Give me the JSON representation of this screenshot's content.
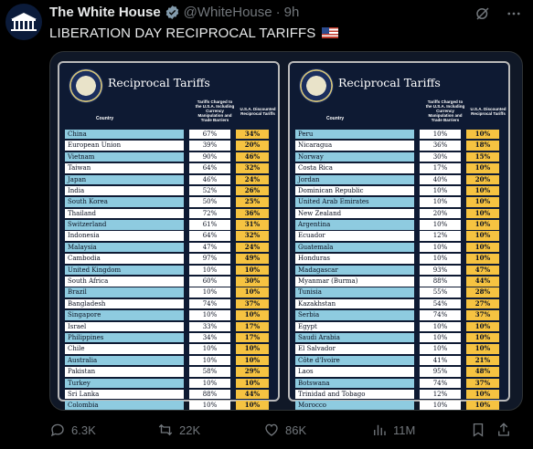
{
  "header": {
    "name": "The White House",
    "handle": "@WhiteHouse",
    "dot": "·",
    "time": "9h"
  },
  "tweet": {
    "text": "LIBERATION DAY RECIPROCAL TARIFFS"
  },
  "image": {
    "panels": [
      {
        "title": "Reciprocal Tariffs",
        "col_country": "Country",
        "col_charged": "Tariffs Charged to the U.S.A. Including Currency Manipulation and Trade Barriers",
        "col_discounted": "U.S.A. Discounted Reciprocal Tariffs",
        "rows": [
          {
            "country": "China",
            "charged": "67%",
            "discounted": "34%"
          },
          {
            "country": "European Union",
            "charged": "39%",
            "discounted": "20%"
          },
          {
            "country": "Vietnam",
            "charged": "90%",
            "discounted": "46%"
          },
          {
            "country": "Taiwan",
            "charged": "64%",
            "discounted": "32%"
          },
          {
            "country": "Japan",
            "charged": "46%",
            "discounted": "24%"
          },
          {
            "country": "India",
            "charged": "52%",
            "discounted": "26%"
          },
          {
            "country": "South Korea",
            "charged": "50%",
            "discounted": "25%"
          },
          {
            "country": "Thailand",
            "charged": "72%",
            "discounted": "36%"
          },
          {
            "country": "Switzerland",
            "charged": "61%",
            "discounted": "31%"
          },
          {
            "country": "Indonesia",
            "charged": "64%",
            "discounted": "32%"
          },
          {
            "country": "Malaysia",
            "charged": "47%",
            "discounted": "24%"
          },
          {
            "country": "Cambodia",
            "charged": "97%",
            "discounted": "49%"
          },
          {
            "country": "United Kingdom",
            "charged": "10%",
            "discounted": "10%"
          },
          {
            "country": "South Africa",
            "charged": "60%",
            "discounted": "30%"
          },
          {
            "country": "Brazil",
            "charged": "10%",
            "discounted": "10%"
          },
          {
            "country": "Bangladesh",
            "charged": "74%",
            "discounted": "37%"
          },
          {
            "country": "Singapore",
            "charged": "10%",
            "discounted": "10%"
          },
          {
            "country": "Israel",
            "charged": "33%",
            "discounted": "17%"
          },
          {
            "country": "Philippines",
            "charged": "34%",
            "discounted": "17%"
          },
          {
            "country": "Chile",
            "charged": "10%",
            "discounted": "10%"
          },
          {
            "country": "Australia",
            "charged": "10%",
            "discounted": "10%"
          },
          {
            "country": "Pakistan",
            "charged": "58%",
            "discounted": "29%"
          },
          {
            "country": "Turkey",
            "charged": "10%",
            "discounted": "10%"
          },
          {
            "country": "Sri Lanka",
            "charged": "88%",
            "discounted": "44%"
          },
          {
            "country": "Colombia",
            "charged": "10%",
            "discounted": "10%"
          }
        ]
      },
      {
        "title": "Reciprocal Tariffs",
        "col_country": "Country",
        "col_charged": "Tariffs Charged to the U.S.A. Including Currency Manipulation and Trade Barriers",
        "col_discounted": "U.S.A. Discounted Reciprocal Tariffs",
        "rows": [
          {
            "country": "Peru",
            "charged": "10%",
            "discounted": "10%"
          },
          {
            "country": "Nicaragua",
            "charged": "36%",
            "discounted": "18%"
          },
          {
            "country": "Norway",
            "charged": "30%",
            "discounted": "15%"
          },
          {
            "country": "Costa Rica",
            "charged": "17%",
            "discounted": "10%"
          },
          {
            "country": "Jordan",
            "charged": "40%",
            "discounted": "20%"
          },
          {
            "country": "Dominican Republic",
            "charged": "10%",
            "discounted": "10%"
          },
          {
            "country": "United Arab Emirates",
            "charged": "10%",
            "discounted": "10%"
          },
          {
            "country": "New Zealand",
            "charged": "20%",
            "discounted": "10%"
          },
          {
            "country": "Argentina",
            "charged": "10%",
            "discounted": "10%"
          },
          {
            "country": "Ecuador",
            "charged": "12%",
            "discounted": "10%"
          },
          {
            "country": "Guatemala",
            "charged": "10%",
            "discounted": "10%"
          },
          {
            "country": "Honduras",
            "charged": "10%",
            "discounted": "10%"
          },
          {
            "country": "Madagascar",
            "charged": "93%",
            "discounted": "47%"
          },
          {
            "country": "Myanmar (Burma)",
            "charged": "88%",
            "discounted": "44%"
          },
          {
            "country": "Tunisia",
            "charged": "55%",
            "discounted": "28%"
          },
          {
            "country": "Kazakhstan",
            "charged": "54%",
            "discounted": "27%"
          },
          {
            "country": "Serbia",
            "charged": "74%",
            "discounted": "37%"
          },
          {
            "country": "Egypt",
            "charged": "10%",
            "discounted": "10%"
          },
          {
            "country": "Saudi Arabia",
            "charged": "10%",
            "discounted": "10%"
          },
          {
            "country": "El Salvador",
            "charged": "10%",
            "discounted": "10%"
          },
          {
            "country": "Côte d'Ivoire",
            "charged": "41%",
            "discounted": "21%"
          },
          {
            "country": "Laos",
            "charged": "95%",
            "discounted": "48%"
          },
          {
            "country": "Botswana",
            "charged": "74%",
            "discounted": "37%"
          },
          {
            "country": "Trinidad and Tobago",
            "charged": "12%",
            "discounted": "10%"
          },
          {
            "country": "Morocco",
            "charged": "10%",
            "discounted": "10%"
          }
        ]
      }
    ]
  },
  "actions": {
    "replies": "6.3K",
    "reposts": "22K",
    "likes": "86K",
    "views": "11M"
  },
  "icons": {
    "verified": "verified-badge-icon",
    "grok": "grok-icon",
    "more": "more-icon",
    "reply": "reply-icon",
    "repost": "repost-icon",
    "like": "like-icon",
    "views": "views-icon",
    "bookmark": "bookmark-icon",
    "share": "share-icon"
  },
  "colors": {
    "background": "#000000",
    "text": "#e7e9ea",
    "muted": "#71767b",
    "verified": "#829aab",
    "table_blue": "#8ecbe0",
    "table_gold": "#f6c341",
    "panel_navy": "#0e1a33"
  }
}
